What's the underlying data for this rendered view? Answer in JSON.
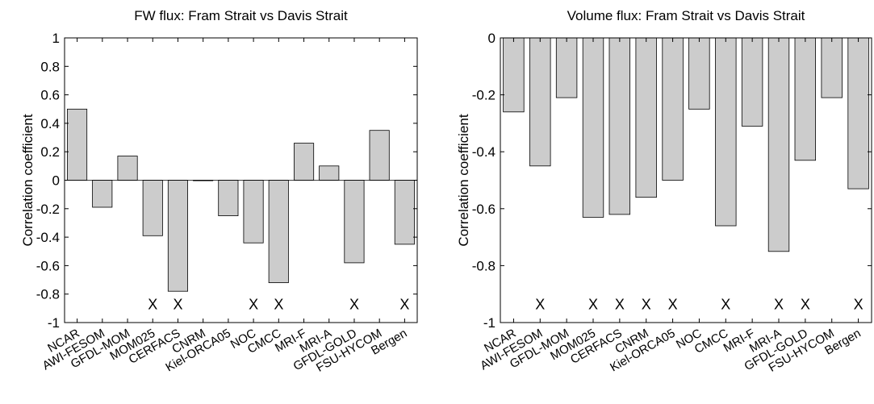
{
  "chart_data": [
    {
      "type": "bar",
      "title": "FW flux: Fram Strait vs Davis Strait",
      "xlabel": "",
      "ylabel": "Correlation coefficient",
      "ylim": [
        -1,
        1
      ],
      "yticks": [
        "1",
        "0.8",
        "0.6",
        "0.4",
        "0.2",
        "0",
        "-0.2",
        "-0.4",
        "-0.6",
        "-0.8",
        "-1"
      ],
      "categories": [
        "NCAR",
        "AWI-FESOM",
        "GFDL-MOM",
        "MOM025",
        "CERFACS",
        "CNRM",
        "Kiel-ORCA05",
        "NOC",
        "CMCC",
        "MRI-F",
        "MRI-A",
        "GFDL-GOLD",
        "FSU-HYCOM",
        "Bergen"
      ],
      "values": [
        0.5,
        -0.19,
        0.17,
        -0.39,
        -0.78,
        0.0,
        -0.25,
        -0.44,
        -0.72,
        0.26,
        0.1,
        -0.58,
        0.35,
        -0.45
      ],
      "markers": [
        "",
        "",
        "",
        "X",
        "X",
        "",
        "",
        "X",
        "X",
        "",
        "",
        "X",
        "",
        "X"
      ],
      "grid": false,
      "bar_color": "#cccccc"
    },
    {
      "type": "bar",
      "title": "Volume flux: Fram Strait vs Davis Strait",
      "xlabel": "",
      "ylabel": "Correlation coefficient",
      "ylim": [
        -1,
        0
      ],
      "yticks": [
        "0",
        "-0.2",
        "-0.4",
        "-0.6",
        "-0.8",
        "-1"
      ],
      "categories": [
        "NCAR",
        "AWI-FESOM",
        "GFDL-MOM",
        "MOM025",
        "CERFACS",
        "CNRM",
        "Kiel-ORCA05",
        "NOC",
        "CMCC",
        "MRI-F",
        "MRI-A",
        "GFDL-GOLD",
        "FSU-HYCOM",
        "Bergen"
      ],
      "values": [
        -0.26,
        -0.45,
        -0.21,
        -0.63,
        -0.62,
        -0.56,
        -0.5,
        -0.25,
        -0.66,
        -0.31,
        -0.75,
        -0.43,
        -0.21,
        -0.53
      ],
      "markers": [
        "",
        "X",
        "",
        "X",
        "X",
        "X",
        "X",
        "",
        "X",
        "",
        "X",
        "X",
        "",
        "X"
      ],
      "grid": false,
      "bar_color": "#cccccc"
    }
  ]
}
